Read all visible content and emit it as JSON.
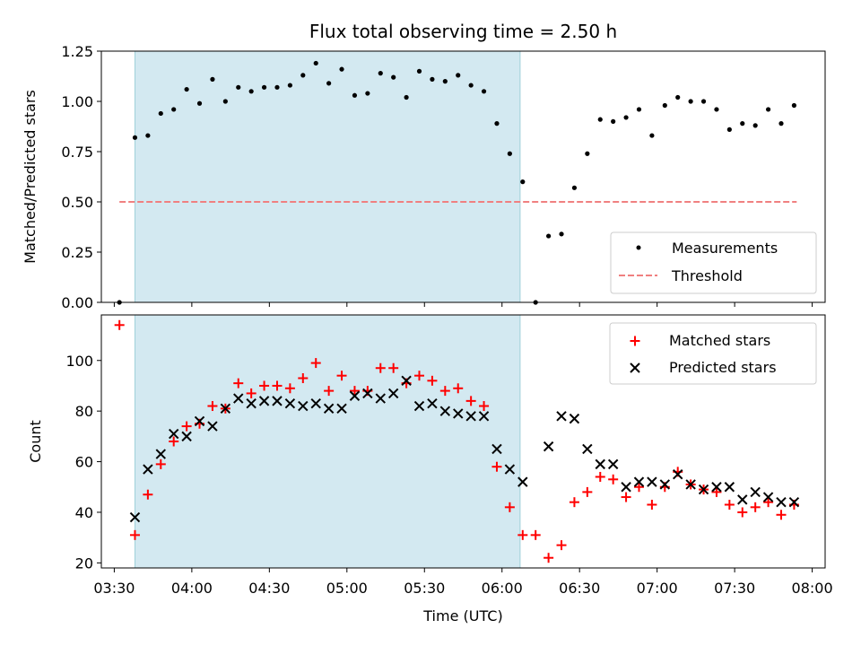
{
  "chart_data": [
    {
      "type": "scatter",
      "title": "Flux total observing time = 2.50 h",
      "xlabel": "",
      "ylabel": "Matched/Predicted stars",
      "xlim": [
        "03:25",
        "08:05"
      ],
      "ylim": [
        0,
        1.25
      ],
      "yticks": [
        0,
        0.25,
        0.5,
        0.75,
        1.0,
        1.25
      ],
      "ytick_labels": [
        "0.00",
        "0.25",
        "0.50",
        "0.75",
        "1.00",
        "1.25"
      ],
      "xticks": [
        "03:30",
        "04:00",
        "04:30",
        "05:00",
        "05:30",
        "06:00",
        "06:30",
        "07:00",
        "07:30",
        "08:00"
      ],
      "show_xtick_labels": false,
      "grid": false,
      "legend_position": "lower-right",
      "shaded_region": {
        "from": "03:38",
        "to": "06:07",
        "color": "#d3e9f1",
        "edge": "#9fd0d9"
      },
      "threshold": {
        "name": "Threshold",
        "y": 0.5,
        "from": "03:32",
        "to": "07:54",
        "color": "#f08080",
        "style": "dashed"
      },
      "series": [
        {
          "name": "Measurements",
          "marker": "dot",
          "color": "#000000",
          "x": [
            "03:32",
            "03:38",
            "03:43",
            "03:48",
            "03:53",
            "03:58",
            "04:03",
            "04:08",
            "04:13",
            "04:18",
            "04:23",
            "04:28",
            "04:33",
            "04:38",
            "04:43",
            "04:48",
            "04:53",
            "04:58",
            "05:03",
            "05:08",
            "05:13",
            "05:18",
            "05:23",
            "05:28",
            "05:33",
            "05:38",
            "05:43",
            "05:48",
            "05:53",
            "05:58",
            "06:03",
            "06:08",
            "06:13",
            "06:18",
            "06:23",
            "06:28",
            "06:33",
            "06:38",
            "06:43",
            "06:48",
            "06:53",
            "06:58",
            "07:03",
            "07:08",
            "07:13",
            "07:18",
            "07:23",
            "07:28",
            "07:33",
            "07:38",
            "07:43",
            "07:48",
            "07:53"
          ],
          "y": [
            0.0,
            0.82,
            0.83,
            0.94,
            0.96,
            1.06,
            0.99,
            1.11,
            1.0,
            1.07,
            1.05,
            1.07,
            1.07,
            1.08,
            1.13,
            1.19,
            1.09,
            1.16,
            1.03,
            1.04,
            1.14,
            1.12,
            1.02,
            1.15,
            1.11,
            1.1,
            1.13,
            1.08,
            1.05,
            0.89,
            0.74,
            0.6,
            0.0,
            0.33,
            0.34,
            0.57,
            0.74,
            0.91,
            0.9,
            0.92,
            0.96,
            0.83,
            0.98,
            1.02,
            1.0,
            1.0,
            0.96,
            0.86,
            0.89,
            0.88,
            0.96,
            0.89,
            0.98
          ]
        }
      ]
    },
    {
      "type": "scatter",
      "title": "",
      "xlabel": "Time (UTC)",
      "ylabel": "Count",
      "xlim": [
        "03:25",
        "08:05"
      ],
      "ylim": [
        18,
        118
      ],
      "yticks": [
        20,
        40,
        60,
        80,
        100
      ],
      "ytick_labels": [
        "20",
        "40",
        "60",
        "80",
        "100"
      ],
      "xticks": [
        "03:30",
        "04:00",
        "04:30",
        "05:00",
        "05:30",
        "06:00",
        "06:30",
        "07:00",
        "07:30",
        "08:00"
      ],
      "xtick_labels": [
        "03:30",
        "04:00",
        "04:30",
        "05:00",
        "05:30",
        "06:00",
        "06:30",
        "07:00",
        "07:30",
        "08:00"
      ],
      "grid": false,
      "legend_position": "upper-right",
      "shaded_region": {
        "from": "03:38",
        "to": "06:07",
        "color": "#d3e9f1",
        "edge": "#9fd0d9"
      },
      "series": [
        {
          "name": "Matched stars",
          "marker": "plus",
          "color": "#ff0000",
          "x": [
            "03:32",
            "03:38",
            "03:43",
            "03:48",
            "03:53",
            "03:58",
            "04:03",
            "04:08",
            "04:13",
            "04:18",
            "04:23",
            "04:28",
            "04:33",
            "04:38",
            "04:43",
            "04:48",
            "04:53",
            "04:58",
            "05:03",
            "05:08",
            "05:13",
            "05:18",
            "05:23",
            "05:28",
            "05:33",
            "05:38",
            "05:43",
            "05:48",
            "05:53",
            "05:58",
            "06:03",
            "06:08",
            "06:13",
            "06:18",
            "06:23",
            "06:28",
            "06:33",
            "06:38",
            "06:43",
            "06:48",
            "06:53",
            "06:58",
            "07:03",
            "07:08",
            "07:13",
            "07:18",
            "07:23",
            "07:28",
            "07:33",
            "07:38",
            "07:43",
            "07:48",
            "07:53"
          ],
          "y": [
            114,
            31,
            47,
            59,
            68,
            74,
            75,
            82,
            81,
            91,
            87,
            90,
            90,
            89,
            93,
            99,
            88,
            94,
            88,
            88,
            97,
            97,
            91,
            94,
            92,
            88,
            89,
            84,
            82,
            58,
            42,
            31,
            31,
            22,
            27,
            44,
            48,
            54,
            53,
            46,
            50,
            43,
            50,
            56,
            51,
            49,
            48,
            43,
            40,
            42,
            44,
            39,
            43
          ]
        },
        {
          "name": "Predicted stars",
          "marker": "x",
          "color": "#000000",
          "x": [
            "03:38",
            "03:43",
            "03:48",
            "03:53",
            "03:58",
            "04:03",
            "04:08",
            "04:13",
            "04:18",
            "04:23",
            "04:28",
            "04:33",
            "04:38",
            "04:43",
            "04:48",
            "04:53",
            "04:58",
            "05:03",
            "05:08",
            "05:13",
            "05:18",
            "05:23",
            "05:28",
            "05:33",
            "05:38",
            "05:43",
            "05:48",
            "05:53",
            "05:58",
            "06:03",
            "06:08",
            "06:18",
            "06:23",
            "06:28",
            "06:33",
            "06:38",
            "06:43",
            "06:48",
            "06:53",
            "06:58",
            "07:03",
            "07:08",
            "07:13",
            "07:18",
            "07:23",
            "07:28",
            "07:33",
            "07:38",
            "07:43",
            "07:48",
            "07:53"
          ],
          "y": [
            38,
            57,
            63,
            71,
            70,
            76,
            74,
            81,
            85,
            83,
            84,
            84,
            83,
            82,
            83,
            81,
            81,
            86,
            87,
            85,
            87,
            92,
            82,
            83,
            80,
            79,
            78,
            78,
            65,
            57,
            52,
            66,
            78,
            77,
            65,
            59,
            59,
            50,
            52,
            52,
            51,
            55,
            51,
            49,
            50,
            50,
            45,
            48,
            46,
            44,
            44
          ]
        }
      ]
    }
  ]
}
